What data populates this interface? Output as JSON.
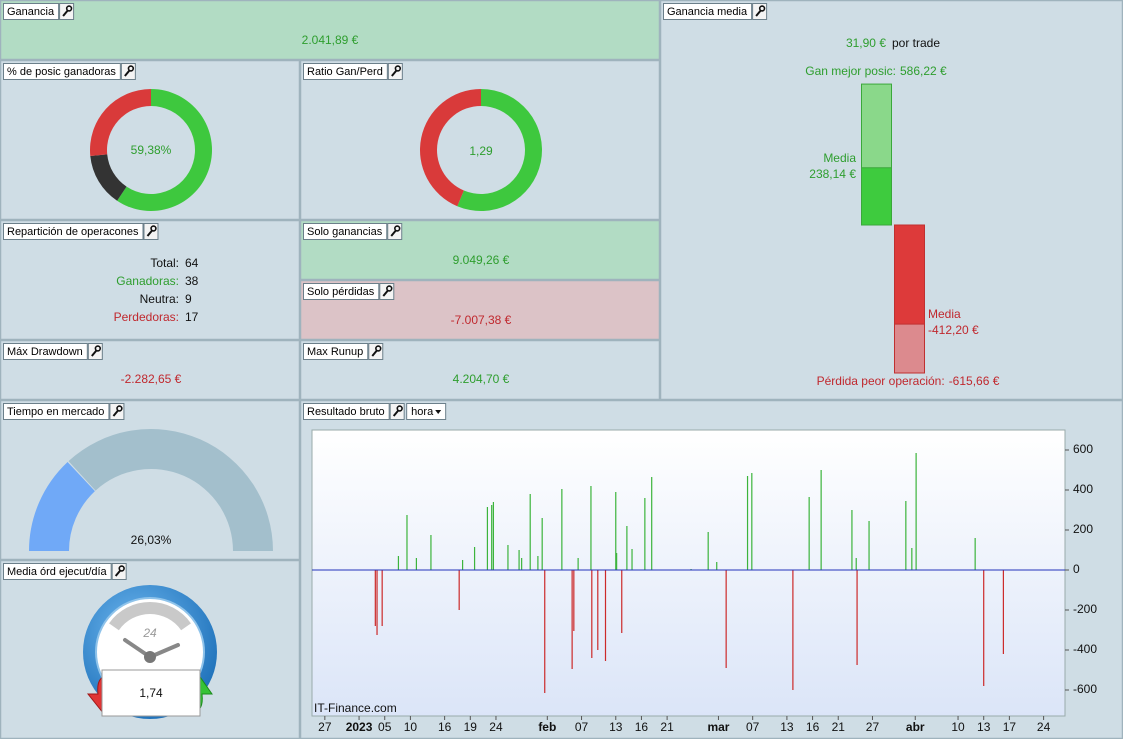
{
  "ganancia": {
    "title": "Ganancia",
    "value": "2.041,89 €"
  },
  "posic_ganadoras": {
    "title": "% de posic ganadoras",
    "value": "59,38%"
  },
  "ratio": {
    "title": "Ratio Gan/Perd",
    "value": "1,29"
  },
  "ganancia_media": {
    "title": "Ganancia media",
    "value": "31,90 €",
    "unit": "por trade",
    "best": {
      "caption": "Gan mejor posic:",
      "value": 586.22,
      "label": "586,22 €"
    },
    "avg_gain": {
      "caption": "Media",
      "value": 238.14,
      "label": "238,14 €"
    },
    "avg_loss": {
      "caption": "Media",
      "value": -412.2,
      "label": "-412,20 €"
    },
    "worst": {
      "caption": "Pérdida peor operación:",
      "value": -615.66,
      "label": "-615,66 €"
    }
  },
  "reparticion": {
    "title": "Repartición de operacones",
    "rows": [
      {
        "label": "Total:",
        "value": 64
      },
      {
        "label": "Ganadoras:",
        "value": 38
      },
      {
        "label": "Neutra:",
        "value": 9
      },
      {
        "label": "Perdedoras:",
        "value": 17
      }
    ]
  },
  "solo_ganancias": {
    "title": "Solo ganancias",
    "value": 9049.26,
    "label": "9.049,26 €"
  },
  "solo_perdidas": {
    "title": "Solo pérdidas",
    "value": -7007.38,
    "label": "-7.007,38 €"
  },
  "max_drawdown": {
    "title": "Máx Drawdown",
    "value": "-2.282,65 €"
  },
  "max_runup": {
    "title": "Max Runup",
    "value": "4.204,70 €"
  },
  "tiempo_mercado": {
    "title": "Tiempo en mercado",
    "value": 26.03,
    "label": "26,03%"
  },
  "media_ordenes": {
    "title": "Media órd ejecut/día",
    "value": "1,74",
    "dial": "24"
  },
  "resultado_bruto": {
    "title": "Resultado bruto",
    "interval": "hora",
    "watermark": "IT-Finance.com"
  },
  "chart_data": {
    "type": "bar",
    "x": [
      7.4,
      7.6,
      8.2,
      10.1,
      11.1,
      12.2,
      13.9,
      17.2,
      17.6,
      19.0,
      20.5,
      21.0,
      21.2,
      22.9,
      24.2,
      24.5,
      25.5,
      26.4,
      26.9,
      27.2,
      29.2,
      30.4,
      30.6,
      31.1,
      32.6,
      32.7,
      33.4,
      34.3,
      35.5,
      35.6,
      36.2,
      36.8,
      37.4,
      38.9,
      39.7,
      44.3,
      46.3,
      47.3,
      48.4,
      50.9,
      51.4,
      56.2,
      58.1,
      59.5,
      63.1,
      63.6,
      63.7,
      65.1,
      69.4,
      70.1,
      70.6,
      77.5,
      78.5,
      80.8
    ],
    "values": [
      -280,
      -325,
      -280,
      70,
      275,
      60,
      175,
      -200,
      50,
      115,
      315,
      325,
      340,
      125,
      100,
      60,
      380,
      70,
      260,
      -615,
      405,
      -495,
      -305,
      60,
      420,
      -440,
      -400,
      -455,
      390,
      85,
      -315,
      220,
      105,
      360,
      465,
      5,
      190,
      40,
      -490,
      470,
      485,
      -600,
      365,
      500,
      300,
      60,
      -475,
      245,
      345,
      110,
      585,
      160,
      -580,
      -420
    ],
    "color": "#3cb43c",
    "negative_color": "#cc2a2a",
    "zero_line_color": "#2233bb",
    "xlim": [
      0,
      88
    ],
    "xticks": [
      {
        "value": 1.5,
        "label": "27"
      },
      {
        "value": 5.5,
        "label": "2023"
      },
      {
        "value": 8.5,
        "label": "05"
      },
      {
        "value": 11.5,
        "label": "10"
      },
      {
        "value": 15.5,
        "label": "16"
      },
      {
        "value": 18.5,
        "label": "19"
      },
      {
        "value": 21.5,
        "label": "24"
      },
      {
        "value": 27.5,
        "label": "feb"
      },
      {
        "value": 31.5,
        "label": "07"
      },
      {
        "value": 35.5,
        "label": "13"
      },
      {
        "value": 38.5,
        "label": "16"
      },
      {
        "value": 41.5,
        "label": "21"
      },
      {
        "value": 47.5,
        "label": "mar"
      },
      {
        "value": 51.5,
        "label": "07"
      },
      {
        "value": 55.5,
        "label": "13"
      },
      {
        "value": 58.5,
        "label": "16"
      },
      {
        "value": 61.5,
        "label": "21"
      },
      {
        "value": 65.5,
        "label": "27"
      },
      {
        "value": 70.5,
        "label": "abr"
      },
      {
        "value": 75.5,
        "label": "10"
      },
      {
        "value": 78.5,
        "label": "13"
      },
      {
        "value": 81.5,
        "label": "17"
      },
      {
        "value": 85.5,
        "label": "24"
      }
    ],
    "ylim": [
      -730,
      700
    ],
    "yticks": [
      -600,
      -400,
      -200,
      0,
      200,
      400,
      600
    ],
    "grid": false
  }
}
